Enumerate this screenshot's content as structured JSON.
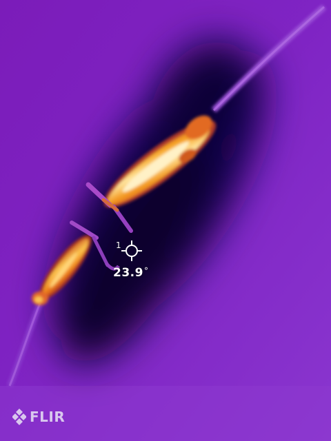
{
  "spot_meter": {
    "index": "1",
    "temperature": "23.9",
    "unit_symbol": "°",
    "icon": "crosshair-icon"
  },
  "brand": {
    "name": "FLIR",
    "logo_icon": "flir-logo-icon"
  },
  "palette": {
    "background": "#7a1fbf",
    "cold": "#0a0035",
    "hot": "#ffe7a8"
  }
}
